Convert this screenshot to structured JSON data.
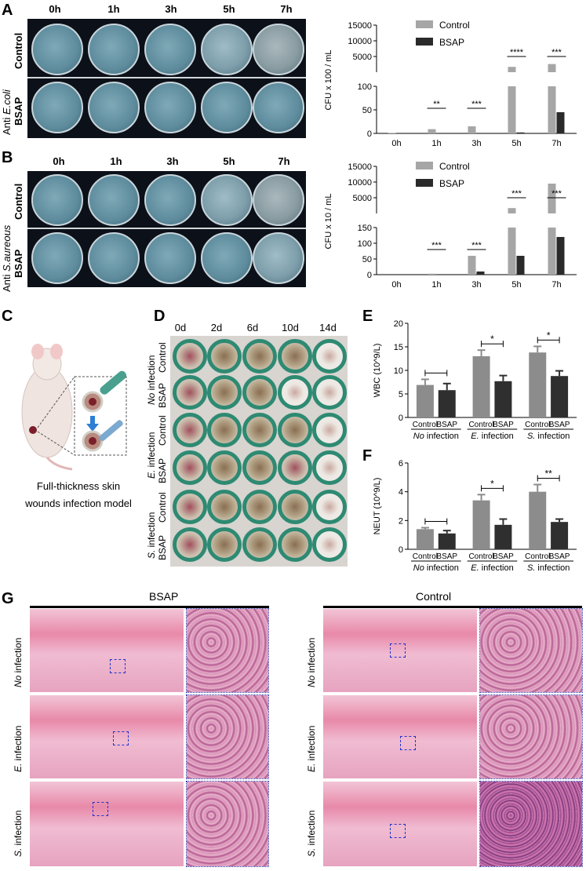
{
  "panels": {
    "A": "A",
    "B": "B",
    "C": "C",
    "D": "D",
    "E": "E",
    "F": "F",
    "G": "G"
  },
  "plates": {
    "times": [
      "0h",
      "1h",
      "3h",
      "5h",
      "7h"
    ],
    "rows": [
      "Control",
      "BSAP"
    ],
    "a_side_label": "Anti",
    "a_side_species": "E.coli",
    "b_side_label": "Anti",
    "b_side_species": "S.aureous"
  },
  "mouse_caption_line1": "Full-thickness skin",
  "mouse_caption_line2": "wounds infection model",
  "wounds": {
    "days": [
      "0d",
      "2d",
      "6d",
      "10d",
      "14d"
    ],
    "groups": [
      {
        "prefix": "No",
        "suffix": " infection"
      },
      {
        "prefix": "E.",
        "suffix": " infection"
      },
      {
        "prefix": "S.",
        "suffix": " infection"
      }
    ],
    "rows": [
      "Control",
      "BSAP"
    ]
  },
  "histology": {
    "left_title": "BSAP",
    "right_title": "Control",
    "rows": [
      {
        "prefix": "No",
        "suffix": " infection"
      },
      {
        "prefix": "E.",
        "suffix": " infection"
      },
      {
        "prefix": "S.",
        "suffix": " infection"
      }
    ]
  },
  "chart_data": [
    {
      "type": "bar",
      "panel": "A",
      "ylabel": "CFU x 100 / mL",
      "categories": [
        "0h",
        "1h",
        "3h",
        "5h",
        "7h"
      ],
      "y_ticks_upper": [
        "15000",
        "10000",
        "5000"
      ],
      "y_ticks_lower": [
        "100",
        "50",
        "0"
      ],
      "series": [
        {
          "name": "Control",
          "values": [
            1,
            9,
            15,
            1700,
            2600
          ],
          "color": "#a6a6a6"
        },
        {
          "name": "BSAP",
          "values": [
            0,
            0,
            0,
            2,
            45
          ],
          "color": "#2a2a2a"
        }
      ],
      "significance": [
        "",
        "**",
        "***",
        "****",
        "***"
      ]
    },
    {
      "type": "bar",
      "panel": "B",
      "ylabel": "CFU x 10 / mL",
      "categories": [
        "0h",
        "1h",
        "3h",
        "5h",
        "7h"
      ],
      "y_ticks_upper": [
        "15000",
        "10000",
        "5000"
      ],
      "y_ticks_lower": [
        "150",
        "100",
        "50",
        "0"
      ],
      "series": [
        {
          "name": "Control",
          "values": [
            0,
            3,
            60,
            1700,
            9500
          ],
          "color": "#a6a6a6"
        },
        {
          "name": "BSAP",
          "values": [
            0,
            0,
            10,
            60,
            120
          ],
          "color": "#2a2a2a"
        }
      ],
      "significance": [
        "",
        "***",
        "***",
        "***",
        "***"
      ]
    },
    {
      "type": "bar",
      "panel": "E",
      "ylabel": "WBC (10^9/L)",
      "y_ticks": [
        "20",
        "15",
        "10",
        "5",
        "0"
      ],
      "ylim": [
        0,
        20
      ],
      "bar_labels": [
        "Control",
        "BSAP",
        "Control",
        "BSAP",
        "Control",
        "BSAP"
      ],
      "group_prefixes": [
        "No",
        "E.",
        "S."
      ],
      "group_suffix": " infection",
      "values": [
        6.9,
        5.8,
        13.0,
        7.7,
        13.8,
        8.8
      ],
      "errors": [
        1.2,
        1.4,
        1.3,
        1.2,
        1.3,
        1.1
      ],
      "colors": [
        "#8c8c8c",
        "#2f2f2f",
        "#8c8c8c",
        "#2f2f2f",
        "#8c8c8c",
        "#2f2f2f"
      ],
      "significance": [
        "",
        "*",
        "*"
      ]
    },
    {
      "type": "bar",
      "panel": "F",
      "ylabel": "NEUT (10^9/L)",
      "y_ticks": [
        "6",
        "4",
        "2",
        "0"
      ],
      "ylim": [
        0,
        6
      ],
      "bar_labels": [
        "Control",
        "BSAP",
        "Control",
        "BSAP",
        "Control",
        "BSAP"
      ],
      "group_prefixes": [
        "No",
        "E.",
        "S."
      ],
      "group_suffix": " infection",
      "values": [
        1.4,
        1.1,
        3.4,
        1.7,
        4.0,
        1.9
      ],
      "errors": [
        0.1,
        0.2,
        0.4,
        0.4,
        0.5,
        0.2
      ],
      "colors": [
        "#8c8c8c",
        "#2f2f2f",
        "#8c8c8c",
        "#2f2f2f",
        "#8c8c8c",
        "#2f2f2f"
      ],
      "significance": [
        "",
        "*",
        "**"
      ]
    }
  ]
}
